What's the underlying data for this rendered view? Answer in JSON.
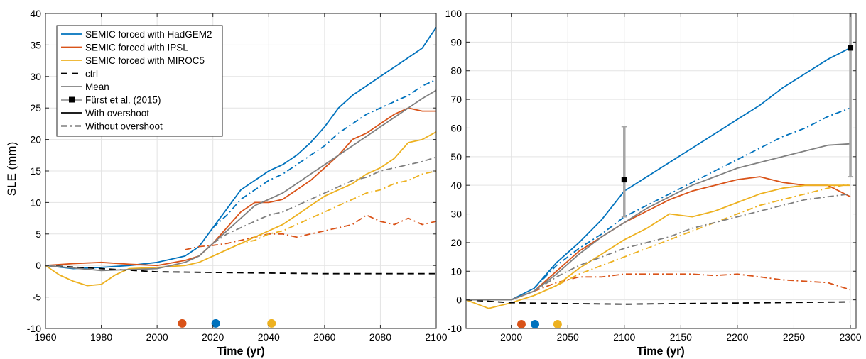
{
  "chart_data": [
    {
      "type": "line",
      "ylabel": "SLE (mm)",
      "xlabel": "Time (yr)",
      "xlim": [
        1960,
        2100
      ],
      "ylim": [
        -10,
        40
      ],
      "xticks": [
        "1960",
        "1980",
        "2000",
        "2020",
        "2040",
        "2060",
        "2080",
        "2100"
      ],
      "yticks": [
        "-10",
        "-5",
        "0",
        "5",
        "10",
        "15",
        "20",
        "25",
        "30",
        "35",
        "40"
      ],
      "legend_position": "top-left",
      "legend": [
        {
          "label": "SEMIC forced with HadGEM2",
          "color": "#0072BD",
          "style": "solid"
        },
        {
          "label": "SEMIC forced with IPSL",
          "color": "#D95319",
          "style": "solid"
        },
        {
          "label": "SEMIC forced with MIROC5",
          "color": "#EDB120",
          "style": "solid"
        },
        {
          "label": "ctrl",
          "color": "#000000",
          "style": "dashed"
        },
        {
          "label": "Mean",
          "color": "#808080",
          "style": "solid"
        },
        {
          "label": "Fürst et al. (2015)",
          "color": "#A6A6A6",
          "style": "errorbar"
        },
        {
          "label": "With overshoot",
          "color": "#000000",
          "style": "solid"
        },
        {
          "label": "Without overshoot",
          "color": "#000000",
          "style": "dashdot"
        }
      ],
      "series": [
        {
          "model": "HadGEM2",
          "variant": "with",
          "color": "#0072BD",
          "style": "solid",
          "x": [
            1960,
            1970,
            1980,
            1990,
            2000,
            2010,
            2015,
            2020,
            2025,
            2030,
            2035,
            2040,
            2045,
            2050,
            2055,
            2060,
            2065,
            2070,
            2075,
            2080,
            2085,
            2090,
            2095,
            2100
          ],
          "y": [
            0,
            -0.5,
            -0.3,
            0,
            0.5,
            1.5,
            3,
            6,
            9,
            12,
            13.5,
            15,
            16,
            17.5,
            19.5,
            22,
            25,
            27,
            28.5,
            30,
            31.5,
            33,
            34.5,
            37.8
          ]
        },
        {
          "model": "HadGEM2",
          "variant": "without",
          "color": "#0072BD",
          "style": "dashdot",
          "x": [
            2020,
            2025,
            2030,
            2035,
            2040,
            2045,
            2050,
            2055,
            2060,
            2065,
            2070,
            2075,
            2080,
            2085,
            2090,
            2095,
            2100
          ],
          "y": [
            6,
            8,
            10.5,
            12,
            13.5,
            14.5,
            16,
            17.5,
            19,
            21,
            22.5,
            24,
            25,
            26,
            27,
            28.5,
            29.5
          ]
        },
        {
          "model": "IPSL",
          "variant": "with",
          "color": "#D95319",
          "style": "solid",
          "x": [
            1960,
            1970,
            1980,
            1990,
            2000,
            2010,
            2015,
            2020,
            2025,
            2030,
            2035,
            2040,
            2045,
            2050,
            2055,
            2060,
            2065,
            2070,
            2075,
            2080,
            2085,
            2090,
            2095,
            2100
          ],
          "y": [
            0,
            0.3,
            0.5,
            0.2,
            0,
            0.8,
            1.5,
            3.5,
            6,
            8.5,
            10,
            10,
            10.5,
            12,
            13.5,
            15.5,
            17.5,
            20,
            21,
            22.5,
            24,
            25,
            24.5,
            24.5
          ]
        },
        {
          "model": "IPSL",
          "variant": "without",
          "color": "#D95319",
          "style": "dashdot",
          "x": [
            2010,
            2015,
            2020,
            2025,
            2030,
            2035,
            2040,
            2045,
            2050,
            2055,
            2060,
            2065,
            2070,
            2075,
            2080,
            2085,
            2090,
            2095,
            2100
          ],
          "y": [
            2.5,
            3,
            3.2,
            3.5,
            4,
            4.5,
            5,
            5,
            4.5,
            5,
            5.5,
            6,
            6.5,
            8,
            7,
            6.5,
            7.5,
            6.5,
            7
          ]
        },
        {
          "model": "MIROC5",
          "variant": "with",
          "color": "#EDB120",
          "style": "solid",
          "x": [
            1960,
            1965,
            1970,
            1975,
            1980,
            1985,
            1990,
            2000,
            2010,
            2015,
            2020,
            2025,
            2030,
            2035,
            2040,
            2045,
            2050,
            2055,
            2060,
            2065,
            2070,
            2075,
            2080,
            2085,
            2090,
            2095,
            2100
          ],
          "y": [
            0,
            -1.5,
            -2.5,
            -3.2,
            -3,
            -1.5,
            -0.5,
            -0.3,
            0,
            0.5,
            1.5,
            2.5,
            3.5,
            4.5,
            5.5,
            6.5,
            8,
            9.5,
            11,
            12,
            13,
            14.5,
            15.5,
            17,
            19.5,
            20,
            21.2
          ]
        },
        {
          "model": "MIROC5",
          "variant": "without",
          "color": "#EDB120",
          "style": "dashdot",
          "x": [
            2020,
            2025,
            2030,
            2035,
            2040,
            2045,
            2050,
            2055,
            2060,
            2065,
            2070,
            2075,
            2080,
            2085,
            2090,
            2095,
            2100
          ],
          "y": [
            1.5,
            2.5,
            3.5,
            4,
            5,
            5.5,
            6.5,
            7.5,
            8.5,
            9.5,
            10.5,
            11.5,
            12,
            13,
            13.5,
            14.5,
            15
          ]
        },
        {
          "model": "ctrl",
          "variant": "ctrl",
          "color": "#000000",
          "style": "dashed",
          "x": [
            1960,
            2000,
            2020,
            2040,
            2060,
            2080,
            2100
          ],
          "y": [
            0,
            -1,
            -1.1,
            -1.2,
            -1.3,
            -1.3,
            -1.3
          ]
        },
        {
          "model": "Mean",
          "variant": "with",
          "color": "#808080",
          "style": "solid",
          "x": [
            1960,
            1980,
            2000,
            2010,
            2015,
            2020,
            2025,
            2030,
            2035,
            2040,
            2045,
            2050,
            2055,
            2060,
            2065,
            2070,
            2075,
            2080,
            2085,
            2090,
            2095,
            2100
          ],
          "y": [
            0,
            -0.8,
            -0.5,
            0.5,
            1.5,
            3.5,
            5.5,
            7.5,
            9.5,
            10.5,
            11.5,
            13,
            14.5,
            16,
            17.5,
            19,
            20.5,
            22,
            23.5,
            25,
            26.5,
            27.8
          ]
        },
        {
          "model": "Mean",
          "variant": "without",
          "color": "#808080",
          "style": "dashdot",
          "x": [
            2020,
            2025,
            2030,
            2035,
            2040,
            2045,
            2050,
            2055,
            2060,
            2065,
            2070,
            2075,
            2080,
            2085,
            2090,
            2095,
            2100
          ],
          "y": [
            3.5,
            5,
            6,
            7,
            8,
            8.5,
            9.5,
            10.5,
            11.5,
            12.5,
            13.5,
            14,
            15,
            15.5,
            16,
            16.5,
            17.2
          ]
        }
      ],
      "markers": [
        {
          "x": 2009,
          "y": -9.2,
          "color": "#D95319"
        },
        {
          "x": 2021,
          "y": -9.2,
          "color": "#0072BD"
        },
        {
          "x": 2041,
          "y": -9.2,
          "color": "#EDB120"
        }
      ]
    },
    {
      "type": "line",
      "xlabel": "Time (yr)",
      "xlim": [
        1960,
        2305
      ],
      "ylim": [
        -10,
        100
      ],
      "xticks": [
        "2000",
        "2050",
        "2100",
        "2150",
        "2200",
        "2250",
        "2300"
      ],
      "yticks": [
        "-10",
        "0",
        "10",
        "20",
        "30",
        "40",
        "50",
        "60",
        "70",
        "80",
        "90",
        "100"
      ],
      "series": [
        {
          "model": "HadGEM2",
          "variant": "with",
          "color": "#0072BD",
          "style": "solid",
          "x": [
            1960,
            2000,
            2020,
            2040,
            2060,
            2080,
            2100,
            2120,
            2140,
            2160,
            2180,
            2200,
            2220,
            2240,
            2260,
            2280,
            2300
          ],
          "y": [
            0,
            0,
            4,
            13,
            20,
            28,
            38,
            43,
            48,
            53,
            58,
            63,
            68,
            74,
            79,
            84,
            88
          ]
        },
        {
          "model": "HadGEM2",
          "variant": "without",
          "color": "#0072BD",
          "style": "dashdot",
          "x": [
            2020,
            2040,
            2060,
            2080,
            2100,
            2120,
            2140,
            2160,
            2180,
            2200,
            2220,
            2240,
            2260,
            2280,
            2300
          ],
          "y": [
            4,
            12,
            18,
            23,
            29,
            33,
            37,
            41,
            45,
            49,
            53,
            57,
            60,
            64,
            67
          ]
        },
        {
          "model": "IPSL",
          "variant": "with",
          "color": "#D95319",
          "style": "solid",
          "x": [
            1960,
            2000,
            2020,
            2040,
            2060,
            2080,
            2100,
            2120,
            2140,
            2160,
            2180,
            2200,
            2220,
            2240,
            2260,
            2280,
            2300
          ],
          "y": [
            0,
            0,
            3,
            10,
            17,
            22,
            27,
            31,
            35,
            38,
            40,
            42,
            43,
            41,
            40,
            40,
            36
          ]
        },
        {
          "model": "IPSL",
          "variant": "without",
          "color": "#D95319",
          "style": "dashdot",
          "x": [
            2020,
            2040,
            2060,
            2080,
            2100,
            2120,
            2140,
            2160,
            2180,
            2200,
            2220,
            2240,
            2260,
            2280,
            2300
          ],
          "y": [
            3,
            6,
            8,
            8,
            9,
            9,
            9,
            9,
            8.5,
            9,
            8,
            7,
            6.5,
            6,
            3.5
          ]
        },
        {
          "model": "MIROC5",
          "variant": "with",
          "color": "#EDB120",
          "style": "solid",
          "x": [
            1960,
            1980,
            2000,
            2020,
            2040,
            2060,
            2080,
            2100,
            2120,
            2140,
            2160,
            2180,
            2200,
            2220,
            2240,
            2260,
            2280,
            2300
          ],
          "y": [
            0,
            -3,
            -1,
            1.5,
            5,
            11,
            16,
            21,
            25,
            30,
            29,
            31,
            34,
            37,
            39,
            40,
            40,
            40
          ]
        },
        {
          "model": "MIROC5",
          "variant": "without",
          "color": "#EDB120",
          "style": "dashdot",
          "x": [
            2020,
            2040,
            2060,
            2080,
            2100,
            2120,
            2140,
            2160,
            2180,
            2200,
            2220,
            2240,
            2260,
            2280,
            2300
          ],
          "y": [
            1.5,
            5,
            9,
            12,
            15,
            18,
            21,
            24,
            27,
            30,
            33,
            35,
            37,
            39,
            40.5
          ]
        },
        {
          "model": "ctrl",
          "variant": "ctrl",
          "color": "#000000",
          "style": "dashed",
          "x": [
            1960,
            2000,
            2050,
            2100,
            2150,
            2200,
            2250,
            2300
          ],
          "y": [
            0,
            -1,
            -1.3,
            -1.5,
            -1.3,
            -1.1,
            -0.9,
            -0.7
          ]
        },
        {
          "model": "Mean",
          "variant": "with",
          "color": "#808080",
          "style": "solid",
          "x": [
            1960,
            2000,
            2020,
            2040,
            2060,
            2080,
            2100,
            2120,
            2140,
            2160,
            2180,
            2200,
            2220,
            2240,
            2260,
            2280,
            2300
          ],
          "y": [
            0,
            0,
            3,
            9,
            16,
            22,
            27,
            32,
            36,
            40,
            43,
            46,
            48,
            50,
            52,
            54,
            54.5
          ]
        },
        {
          "model": "Mean",
          "variant": "without",
          "color": "#808080",
          "style": "dashdot",
          "x": [
            2020,
            2040,
            2060,
            2080,
            2100,
            2120,
            2140,
            2160,
            2180,
            2200,
            2220,
            2240,
            2260,
            2280,
            2300
          ],
          "y": [
            3,
            8,
            12,
            15,
            18,
            20,
            22,
            25,
            27,
            29,
            31,
            33,
            35,
            36,
            37
          ]
        }
      ],
      "errorbars": [
        {
          "x": 2100,
          "y": 42,
          "low": 29,
          "high": 60.5,
          "color": "#A6A6A6"
        },
        {
          "x": 2300,
          "y": 88,
          "low": 43,
          "high": 100,
          "color": "#A6A6A6"
        }
      ],
      "markers": [
        {
          "x": 2009,
          "y": -8.5,
          "color": "#D95319"
        },
        {
          "x": 2021,
          "y": -8.5,
          "color": "#0072BD"
        },
        {
          "x": 2041,
          "y": -8.5,
          "color": "#EDB120"
        }
      ]
    }
  ]
}
